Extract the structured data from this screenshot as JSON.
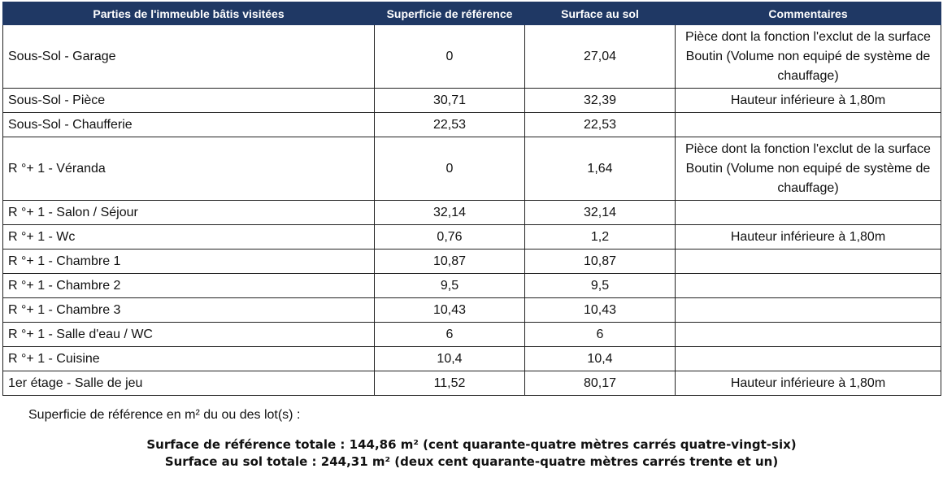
{
  "table": {
    "header": [
      "Parties de l'immeuble bâtis visitées",
      "Superficie de référence",
      "Surface au sol",
      "Commentaires"
    ],
    "rows": [
      [
        "Sous-Sol - Garage",
        "0",
        "27,04",
        "Pièce dont la fonction l'exclut de la surface Boutin (Volume non equipé de système de chauffage)"
      ],
      [
        "Sous-Sol - Pièce",
        "30,71",
        "32,39",
        "Hauteur inférieure à 1,80m"
      ],
      [
        "Sous-Sol - Chaufferie",
        "22,53",
        "22,53",
        ""
      ],
      [
        "R °+ 1 - Véranda",
        "0",
        "1,64",
        "Pièce dont la fonction l'exclut de la surface Boutin (Volume non equipé de système de chauffage)"
      ],
      [
        "R °+ 1 - Salon / Séjour",
        "32,14",
        "32,14",
        ""
      ],
      [
        "R °+ 1 - Wc",
        "0,76",
        "1,2",
        "Hauteur inférieure à 1,80m"
      ],
      [
        "R °+ 1 - Chambre 1",
        "10,87",
        "10,87",
        ""
      ],
      [
        "R °+ 1 - Chambre 2",
        "9,5",
        "9,5",
        ""
      ],
      [
        "R °+ 1 - Chambre 3",
        "10,43",
        "10,43",
        ""
      ],
      [
        "R °+ 1 - Salle d'eau / WC",
        "6",
        "6",
        ""
      ],
      [
        "R °+ 1 - Cuisine",
        "10,4",
        "10,4",
        ""
      ],
      [
        "1er étage - Salle de jeu",
        "11,52",
        "80,17",
        "Hauteur inférieure à 1,80m"
      ]
    ]
  },
  "footer": {
    "intro": "Superficie de référence en m² du ou des lot(s) :",
    "total_reference": "Surface de référence totale : 144,86 m² (cent quarante-quatre mètres carrés quatre-vingt-six)",
    "total_sol": "Surface au sol totale : 244,31 m² (deux cent quarante-quatre mètres carrés trente et un)"
  }
}
